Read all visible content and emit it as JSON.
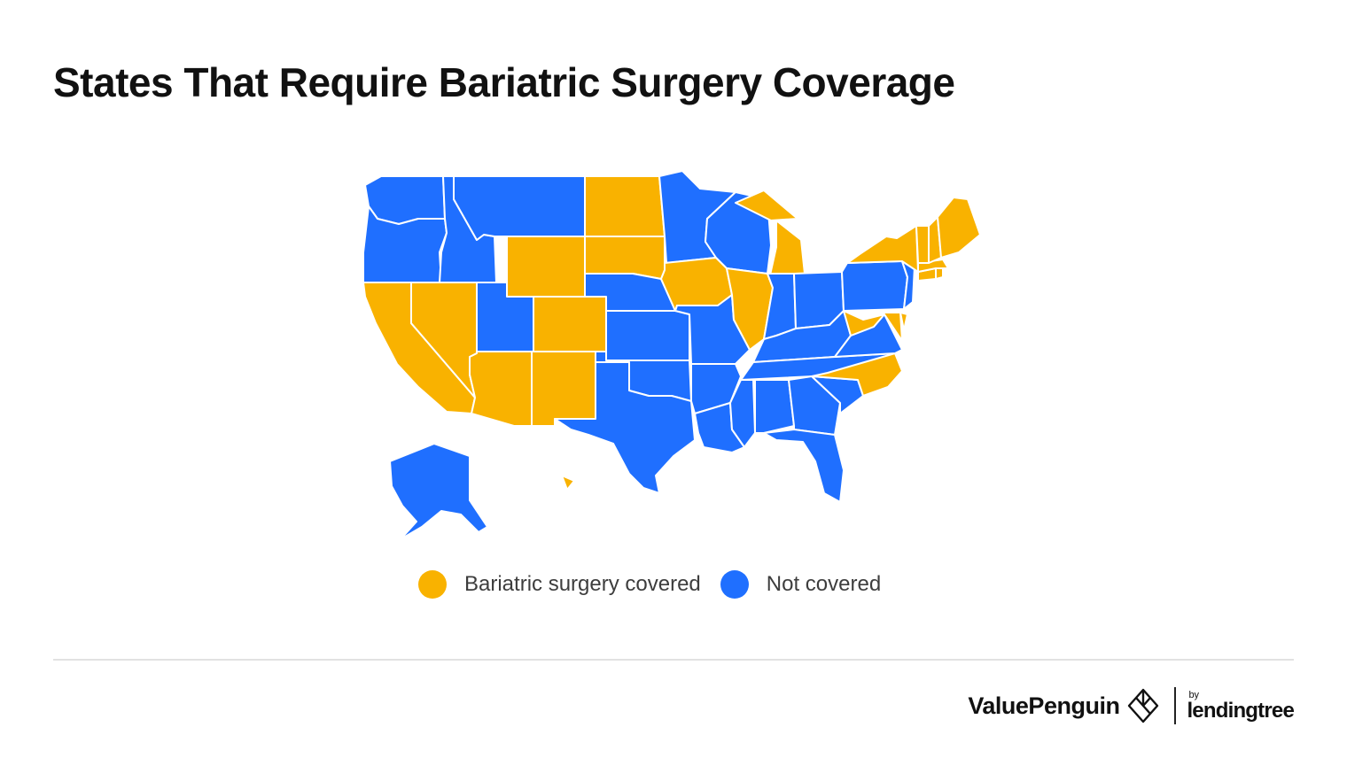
{
  "title": "States That Require Bariatric Surgery Coverage",
  "colors": {
    "covered": "#F9B200",
    "not_covered": "#1F6FFF",
    "border": "#ffffff"
  },
  "legend": {
    "covered_label": "Bariatric surgery covered",
    "not_covered_label": "Not covered"
  },
  "states": [
    {
      "code": "WA",
      "status": "not_covered"
    },
    {
      "code": "OR",
      "status": "not_covered"
    },
    {
      "code": "CA",
      "status": "covered"
    },
    {
      "code": "NV",
      "status": "covered"
    },
    {
      "code": "ID",
      "status": "not_covered"
    },
    {
      "code": "MT",
      "status": "not_covered"
    },
    {
      "code": "WY",
      "status": "covered"
    },
    {
      "code": "UT",
      "status": "not_covered"
    },
    {
      "code": "CO",
      "status": "covered"
    },
    {
      "code": "AZ",
      "status": "covered"
    },
    {
      "code": "NM",
      "status": "covered"
    },
    {
      "code": "ND",
      "status": "covered"
    },
    {
      "code": "SD",
      "status": "covered"
    },
    {
      "code": "NE",
      "status": "not_covered"
    },
    {
      "code": "KS",
      "status": "not_covered"
    },
    {
      "code": "OK",
      "status": "not_covered"
    },
    {
      "code": "TX",
      "status": "not_covered"
    },
    {
      "code": "MN",
      "status": "not_covered"
    },
    {
      "code": "IA",
      "status": "covered"
    },
    {
      "code": "MO",
      "status": "not_covered"
    },
    {
      "code": "AR",
      "status": "not_covered"
    },
    {
      "code": "LA",
      "status": "not_covered"
    },
    {
      "code": "WI",
      "status": "not_covered"
    },
    {
      "code": "IL",
      "status": "covered"
    },
    {
      "code": "MI",
      "status": "covered"
    },
    {
      "code": "IN",
      "status": "not_covered"
    },
    {
      "code": "OH",
      "status": "not_covered"
    },
    {
      "code": "KY",
      "status": "not_covered"
    },
    {
      "code": "TN",
      "status": "not_covered"
    },
    {
      "code": "MS",
      "status": "not_covered"
    },
    {
      "code": "AL",
      "status": "not_covered"
    },
    {
      "code": "GA",
      "status": "not_covered"
    },
    {
      "code": "FL",
      "status": "not_covered"
    },
    {
      "code": "SC",
      "status": "not_covered"
    },
    {
      "code": "NC",
      "status": "covered"
    },
    {
      "code": "VA",
      "status": "not_covered"
    },
    {
      "code": "WV",
      "status": "covered"
    },
    {
      "code": "MD",
      "status": "covered"
    },
    {
      "code": "DE",
      "status": "covered"
    },
    {
      "code": "PA",
      "status": "not_covered"
    },
    {
      "code": "NJ",
      "status": "not_covered"
    },
    {
      "code": "NY",
      "status": "covered"
    },
    {
      "code": "CT",
      "status": "covered"
    },
    {
      "code": "RI",
      "status": "covered"
    },
    {
      "code": "MA",
      "status": "covered"
    },
    {
      "code": "VT",
      "status": "covered"
    },
    {
      "code": "NH",
      "status": "covered"
    },
    {
      "code": "ME",
      "status": "covered"
    },
    {
      "code": "AK",
      "status": "not_covered"
    },
    {
      "code": "HI",
      "status": "covered"
    }
  ],
  "footer": {
    "brand_name": "ValuePenguin",
    "brand_icon": "valuepenguin-diamond-icon",
    "by_label": "by",
    "partner_name": "lendingtree"
  }
}
